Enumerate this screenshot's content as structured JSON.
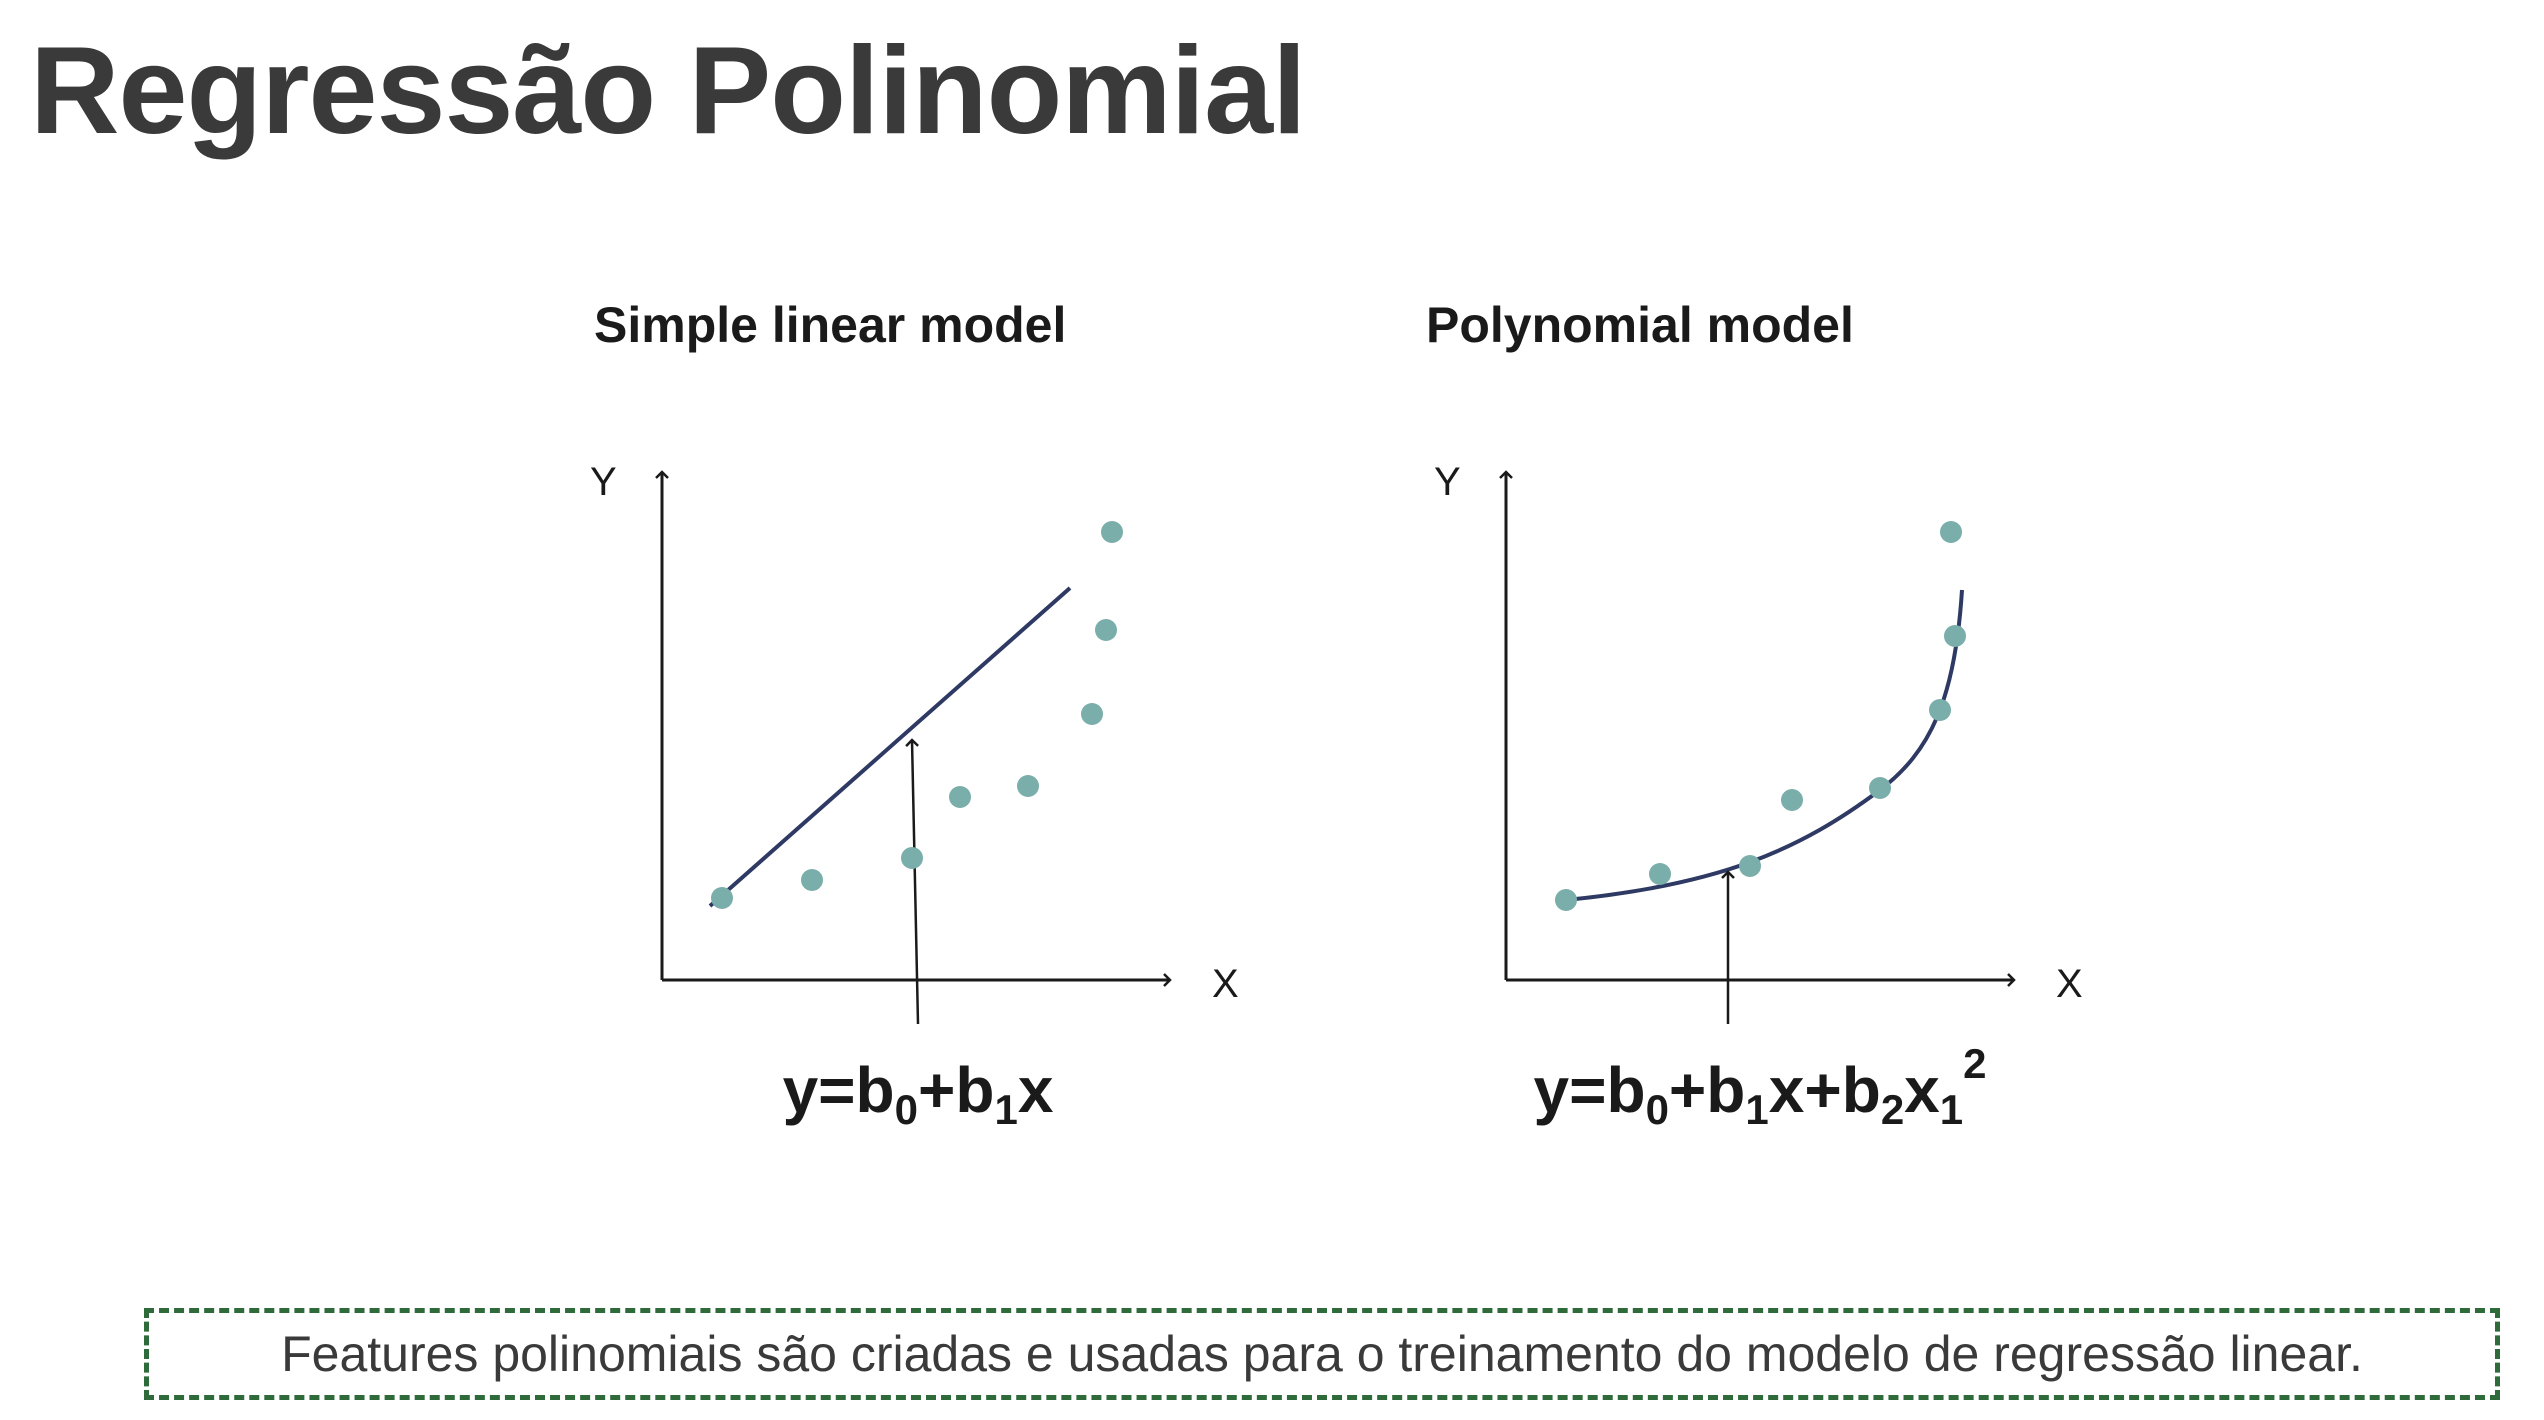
{
  "slide": {
    "title": "Regressão Polinomial",
    "note": "Features polinomiais são criadas e usadas para o treinamento do modelo de regressão linear."
  },
  "colors": {
    "point": "#7aaeaa",
    "fit_line": "#2e3a64",
    "axis": "#1a1a1a",
    "note_border": "#2f6b3a"
  },
  "panels": [
    {
      "title": "Simple linear model",
      "y_label": "Y",
      "x_label": "X",
      "formula": {
        "parts": [
          {
            "t": "y=b",
            "k": "base"
          },
          {
            "t": "0",
            "k": "sub"
          },
          {
            "t": "+b",
            "k": "base"
          },
          {
            "t": "1",
            "k": "sub"
          },
          {
            "t": "x",
            "k": "base"
          }
        ]
      },
      "fit": "linear"
    },
    {
      "title": "Polynomial model",
      "y_label": "Y",
      "x_label": "X",
      "formula": {
        "parts": [
          {
            "t": "y=b",
            "k": "base"
          },
          {
            "t": "0",
            "k": "sub"
          },
          {
            "t": "+b",
            "k": "base"
          },
          {
            "t": "1",
            "k": "sub"
          },
          {
            "t": "x+b",
            "k": "base"
          },
          {
            "t": "2",
            "k": "sub"
          },
          {
            "t": "x",
            "k": "base"
          },
          {
            "t": "1",
            "k": "sub"
          },
          {
            "t": "2",
            "k": "sup"
          }
        ]
      },
      "fit": "polynomial"
    }
  ]
}
